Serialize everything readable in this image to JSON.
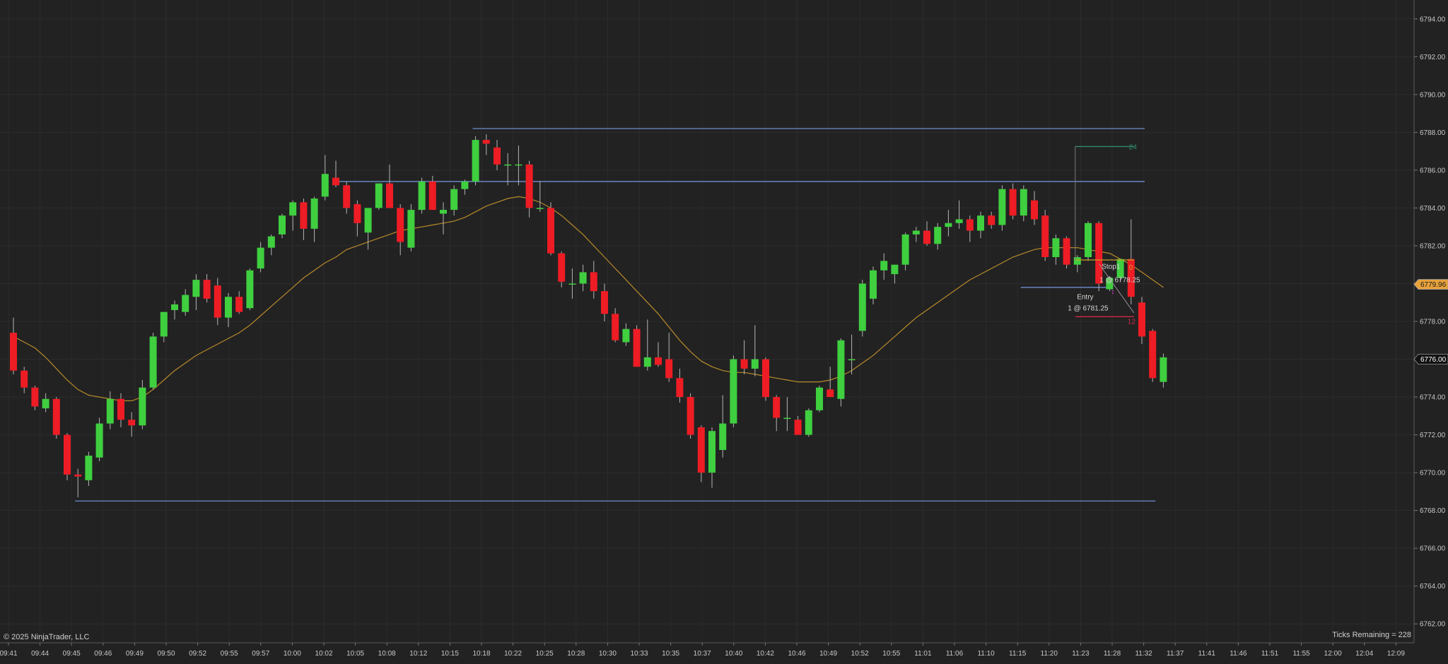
{
  "footer": {
    "copyright": "© 2025 NinjaTrader, LLC",
    "ticks_label": "Ticks Remaining =",
    "ticks_value": "228"
  },
  "colors": {
    "background": "#222222",
    "grid": "#2c2c2c",
    "up": "#3fcf3f",
    "down": "#ee1c24",
    "wick": "#b5b5b5",
    "ma": "#b88a2a",
    "zone_line": "#6e8fd0",
    "axis_text": "#c8c8c8",
    "target": "#2e8b6a",
    "stop": "#d02848",
    "entry_line": "#c8a028",
    "last_price_bg": "#e8a23a"
  },
  "chart_data": {
    "type": "candlestick",
    "title": "",
    "xlabel": "",
    "ylabel": "",
    "ylim": [
      6761.0,
      6795.0
    ],
    "y_ticks": [
      "6762.00",
      "6764.00",
      "6766.00",
      "6768.00",
      "6770.00",
      "6772.00",
      "6774.00",
      "6776.00",
      "6778.00",
      "6780.00",
      "6782.00",
      "6784.00",
      "6786.00",
      "6788.00",
      "6790.00",
      "6792.00",
      "6794.00"
    ],
    "x_ticks": [
      "09:41",
      "09:44",
      "09:45",
      "09:46",
      "09:49",
      "09:50",
      "09:52",
      "09:55",
      "09:57",
      "10:00",
      "10:02",
      "10:05",
      "10:08",
      "10:12",
      "10:15",
      "10:18",
      "10:22",
      "10:25",
      "10:28",
      "10:30",
      "10:33",
      "10:35",
      "10:37",
      "10:40",
      "10:42",
      "10:46",
      "10:49",
      "10:52",
      "10:55",
      "11:01",
      "11:06",
      "11:10",
      "11:15",
      "11:20",
      "11:23",
      "11:28",
      "11:32",
      "11:37",
      "11:41",
      "11:46",
      "11:51",
      "11:55",
      "12:00",
      "12:04",
      "12:09"
    ],
    "candles": [
      {
        "o": 6777.4,
        "h": 6778.2,
        "l": 6775.2,
        "c": 6775.4
      },
      {
        "o": 6775.4,
        "h": 6775.6,
        "l": 6774.2,
        "c": 6774.5
      },
      {
        "o": 6774.5,
        "h": 6774.6,
        "l": 6773.3,
        "c": 6773.5
      },
      {
        "o": 6773.4,
        "h": 6774.2,
        "l": 6773.2,
        "c": 6773.9
      },
      {
        "o": 6773.9,
        "h": 6774.0,
        "l": 6771.8,
        "c": 6772.0
      },
      {
        "o": 6772.0,
        "h": 6772.1,
        "l": 6769.6,
        "c": 6769.9
      },
      {
        "o": 6769.9,
        "h": 6770.2,
        "l": 6768.7,
        "c": 6769.8
      },
      {
        "o": 6769.6,
        "h": 6771.1,
        "l": 6769.3,
        "c": 6770.9
      },
      {
        "o": 6770.8,
        "h": 6772.9,
        "l": 6770.6,
        "c": 6772.6
      },
      {
        "o": 6772.6,
        "h": 6774.3,
        "l": 6772.3,
        "c": 6773.9
      },
      {
        "o": 6773.9,
        "h": 6774.2,
        "l": 6772.4,
        "c": 6772.8
      },
      {
        "o": 6772.8,
        "h": 6773.2,
        "l": 6771.9,
        "c": 6772.5
      },
      {
        "o": 6772.5,
        "h": 6774.9,
        "l": 6772.3,
        "c": 6774.5
      },
      {
        "o": 6774.5,
        "h": 6777.4,
        "l": 6774.4,
        "c": 6777.2
      },
      {
        "o": 6777.2,
        "h": 6778.5,
        "l": 6776.9,
        "c": 6778.5
      },
      {
        "o": 6778.6,
        "h": 6779.1,
        "l": 6778.1,
        "c": 6778.9
      },
      {
        "o": 6778.5,
        "h": 6779.7,
        "l": 6778.3,
        "c": 6779.4
      },
      {
        "o": 6779.3,
        "h": 6780.5,
        "l": 6778.6,
        "c": 6780.2
      },
      {
        "o": 6780.2,
        "h": 6780.5,
        "l": 6779.0,
        "c": 6779.2
      },
      {
        "o": 6779.9,
        "h": 6780.3,
        "l": 6777.8,
        "c": 6778.2
      },
      {
        "o": 6778.2,
        "h": 6779.5,
        "l": 6777.7,
        "c": 6779.3
      },
      {
        "o": 6779.3,
        "h": 6779.6,
        "l": 6778.4,
        "c": 6778.5
      },
      {
        "o": 6778.7,
        "h": 6780.8,
        "l": 6778.6,
        "c": 6780.7
      },
      {
        "o": 6780.8,
        "h": 6782.2,
        "l": 6780.6,
        "c": 6781.9
      },
      {
        "o": 6781.9,
        "h": 6782.6,
        "l": 6781.5,
        "c": 6782.5
      },
      {
        "o": 6782.6,
        "h": 6783.7,
        "l": 6782.4,
        "c": 6783.6
      },
      {
        "o": 6783.6,
        "h": 6784.4,
        "l": 6782.8,
        "c": 6784.3
      },
      {
        "o": 6784.3,
        "h": 6784.5,
        "l": 6782.3,
        "c": 6782.9
      },
      {
        "o": 6782.9,
        "h": 6784.6,
        "l": 6782.2,
        "c": 6784.5
      },
      {
        "o": 6784.6,
        "h": 6786.8,
        "l": 6784.4,
        "c": 6785.8
      },
      {
        "o": 6785.6,
        "h": 6786.5,
        "l": 6785.1,
        "c": 6785.2
      },
      {
        "o": 6785.2,
        "h": 6785.4,
        "l": 6783.7,
        "c": 6784.0
      },
      {
        "o": 6784.2,
        "h": 6784.4,
        "l": 6782.5,
        "c": 6783.2
      },
      {
        "o": 6782.7,
        "h": 6784.0,
        "l": 6781.8,
        "c": 6784.0
      },
      {
        "o": 6784.0,
        "h": 6785.3,
        "l": 6783.9,
        "c": 6785.3
      },
      {
        "o": 6785.3,
        "h": 6786.3,
        "l": 6784.0,
        "c": 6784.0
      },
      {
        "o": 6784.0,
        "h": 6784.2,
        "l": 6781.5,
        "c": 6782.2
      },
      {
        "o": 6781.9,
        "h": 6784.2,
        "l": 6781.7,
        "c": 6783.9
      },
      {
        "o": 6783.9,
        "h": 6785.6,
        "l": 6783.7,
        "c": 6785.4
      },
      {
        "o": 6785.4,
        "h": 6785.7,
        "l": 6783.9,
        "c": 6783.9
      },
      {
        "o": 6783.7,
        "h": 6784.3,
        "l": 6782.6,
        "c": 6783.9
      },
      {
        "o": 6783.9,
        "h": 6785.2,
        "l": 6783.6,
        "c": 6785.0
      },
      {
        "o": 6785.0,
        "h": 6785.5,
        "l": 6784.7,
        "c": 6785.4
      },
      {
        "o": 6785.4,
        "h": 6787.8,
        "l": 6785.2,
        "c": 6787.6
      },
      {
        "o": 6787.6,
        "h": 6787.9,
        "l": 6786.8,
        "c": 6787.4
      },
      {
        "o": 6787.2,
        "h": 6787.6,
        "l": 6786.0,
        "c": 6786.3
      },
      {
        "o": 6786.3,
        "h": 6786.9,
        "l": 6785.2,
        "c": 6786.3
      },
      {
        "o": 6786.3,
        "h": 6787.3,
        "l": 6785.2,
        "c": 6786.3
      },
      {
        "o": 6786.3,
        "h": 6786.5,
        "l": 6783.5,
        "c": 6784.0
      },
      {
        "o": 6784.0,
        "h": 6785.4,
        "l": 6783.8,
        "c": 6784.0
      },
      {
        "o": 6784.0,
        "h": 6784.3,
        "l": 6781.5,
        "c": 6781.6
      },
      {
        "o": 6781.6,
        "h": 6781.7,
        "l": 6779.8,
        "c": 6780.1
      },
      {
        "o": 6780.0,
        "h": 6780.8,
        "l": 6779.2,
        "c": 6780.0
      },
      {
        "o": 6780.0,
        "h": 6781.0,
        "l": 6779.6,
        "c": 6780.6
      },
      {
        "o": 6780.6,
        "h": 6781.2,
        "l": 6779.2,
        "c": 6779.6
      },
      {
        "o": 6779.6,
        "h": 6780.0,
        "l": 6778.0,
        "c": 6778.4
      },
      {
        "o": 6778.4,
        "h": 6778.7,
        "l": 6776.9,
        "c": 6777.0
      },
      {
        "o": 6776.9,
        "h": 6777.9,
        "l": 6776.7,
        "c": 6777.6
      },
      {
        "o": 6777.6,
        "h": 6777.8,
        "l": 6775.6,
        "c": 6775.6
      },
      {
        "o": 6775.6,
        "h": 6778.1,
        "l": 6775.4,
        "c": 6776.1
      },
      {
        "o": 6776.1,
        "h": 6776.9,
        "l": 6775.6,
        "c": 6775.7
      },
      {
        "o": 6776.0,
        "h": 6777.4,
        "l": 6774.8,
        "c": 6775.0
      },
      {
        "o": 6775.0,
        "h": 6775.5,
        "l": 6773.7,
        "c": 6774.0
      },
      {
        "o": 6774.0,
        "h": 6774.2,
        "l": 6771.8,
        "c": 6772.0
      },
      {
        "o": 6772.4,
        "h": 6772.5,
        "l": 6769.5,
        "c": 6770.0
      },
      {
        "o": 6770.0,
        "h": 6772.4,
        "l": 6769.2,
        "c": 6772.2
      },
      {
        "o": 6771.2,
        "h": 6774.1,
        "l": 6770.8,
        "c": 6772.6
      },
      {
        "o": 6772.6,
        "h": 6776.2,
        "l": 6772.4,
        "c": 6776.0
      },
      {
        "o": 6776.0,
        "h": 6777.0,
        "l": 6775.2,
        "c": 6775.5
      },
      {
        "o": 6775.5,
        "h": 6777.8,
        "l": 6775.1,
        "c": 6776.0
      },
      {
        "o": 6776.0,
        "h": 6776.1,
        "l": 6773.8,
        "c": 6774.0
      },
      {
        "o": 6774.0,
        "h": 6774.1,
        "l": 6772.2,
        "c": 6772.9
      },
      {
        "o": 6772.9,
        "h": 6774.0,
        "l": 6772.2,
        "c": 6772.9
      },
      {
        "o": 6772.8,
        "h": 6773.0,
        "l": 6772.0,
        "c": 6772.0
      },
      {
        "o": 6772.0,
        "h": 6773.4,
        "l": 6771.9,
        "c": 6773.3
      },
      {
        "o": 6773.3,
        "h": 6774.6,
        "l": 6773.2,
        "c": 6774.5
      },
      {
        "o": 6774.4,
        "h": 6775.6,
        "l": 6774.2,
        "c": 6774.0
      },
      {
        "o": 6773.9,
        "h": 6777.1,
        "l": 6773.5,
        "c": 6777.0
      },
      {
        "o": 6776.0,
        "h": 6777.3,
        "l": 6775.2,
        "c": 6776.0
      },
      {
        "o": 6777.5,
        "h": 6780.2,
        "l": 6777.2,
        "c": 6780.0
      },
      {
        "o": 6779.2,
        "h": 6780.9,
        "l": 6778.9,
        "c": 6780.7
      },
      {
        "o": 6780.7,
        "h": 6781.6,
        "l": 6780.2,
        "c": 6781.2
      },
      {
        "o": 6780.5,
        "h": 6781.0,
        "l": 6780.0,
        "c": 6781.0
      },
      {
        "o": 6781.0,
        "h": 6782.7,
        "l": 6780.7,
        "c": 6782.6
      },
      {
        "o": 6782.6,
        "h": 6783.0,
        "l": 6782.2,
        "c": 6782.8
      },
      {
        "o": 6782.8,
        "h": 6783.3,
        "l": 6782.0,
        "c": 6782.1
      },
      {
        "o": 6782.1,
        "h": 6783.2,
        "l": 6781.8,
        "c": 6783.0
      },
      {
        "o": 6783.0,
        "h": 6783.9,
        "l": 6782.5,
        "c": 6783.2
      },
      {
        "o": 6783.2,
        "h": 6784.4,
        "l": 6782.9,
        "c": 6783.4
      },
      {
        "o": 6783.4,
        "h": 6783.6,
        "l": 6782.2,
        "c": 6782.8
      },
      {
        "o": 6782.8,
        "h": 6783.8,
        "l": 6782.4,
        "c": 6783.6
      },
      {
        "o": 6783.6,
        "h": 6783.8,
        "l": 6782.9,
        "c": 6783.1
      },
      {
        "o": 6783.1,
        "h": 6785.2,
        "l": 6782.8,
        "c": 6785.0
      },
      {
        "o": 6785.0,
        "h": 6785.3,
        "l": 6783.4,
        "c": 6783.6
      },
      {
        "o": 6783.6,
        "h": 6785.2,
        "l": 6783.3,
        "c": 6785.0
      },
      {
        "o": 6784.4,
        "h": 6784.9,
        "l": 6783.1,
        "c": 6783.4
      },
      {
        "o": 6783.6,
        "h": 6783.9,
        "l": 6781.2,
        "c": 6781.4
      },
      {
        "o": 6781.4,
        "h": 6782.6,
        "l": 6781.0,
        "c": 6782.4
      },
      {
        "o": 6782.4,
        "h": 6782.5,
        "l": 6780.8,
        "c": 6781.0
      },
      {
        "o": 6781.0,
        "h": 6781.5,
        "l": 6780.6,
        "c": 6781.4
      },
      {
        "o": 6781.4,
        "h": 6783.3,
        "l": 6781.2,
        "c": 6783.2
      },
      {
        "o": 6783.2,
        "h": 6783.3,
        "l": 6779.6,
        "c": 6780.0
      },
      {
        "o": 6779.7,
        "h": 6780.4,
        "l": 6779.6,
        "c": 6780.3
      },
      {
        "o": 6780.3,
        "h": 6781.3,
        "l": 6780.1,
        "c": 6781.3
      },
      {
        "o": 6781.3,
        "h": 6783.4,
        "l": 6778.9,
        "c": 6779.3
      },
      {
        "o": 6779.0,
        "h": 6779.3,
        "l": 6776.8,
        "c": 6777.2
      },
      {
        "o": 6777.5,
        "h": 6777.6,
        "l": 6774.8,
        "c": 6775.0
      },
      {
        "o": 6774.8,
        "h": 6776.3,
        "l": 6774.5,
        "c": 6776.1
      }
    ],
    "ma": [
      6777.2,
      6776.9,
      6776.6,
      6776.1,
      6775.5,
      6774.9,
      6774.4,
      6774.1,
      6774.0,
      6773.9,
      6773.8,
      6773.8,
      6774.0,
      6774.4,
      6774.9,
      6775.4,
      6775.8,
      6776.2,
      6776.5,
      6776.8,
      6777.1,
      6777.4,
      6777.8,
      6778.3,
      6778.8,
      6779.3,
      6779.8,
      6780.3,
      6780.7,
      6781.1,
      6781.4,
      6781.8,
      6782.0,
      6782.2,
      6782.4,
      6782.6,
      6782.8,
      6782.9,
      6783.0,
      6783.1,
      6783.2,
      6783.3,
      6783.5,
      6783.8,
      6784.1,
      6784.3,
      6784.5,
      6784.6,
      6784.5,
      6784.3,
      6784.0,
      6783.6,
      6783.1,
      6782.6,
      6782.0,
      6781.4,
      6780.8,
      6780.2,
      6779.6,
      6779.0,
      6778.4,
      6777.7,
      6777.0,
      6776.4,
      6775.9,
      6775.6,
      6775.4,
      6775.3,
      6775.3,
      6775.2,
      6775.1,
      6775.0,
      6774.9,
      6774.8,
      6774.8,
      6774.8,
      6774.9,
      6775.1,
      6775.4,
      6775.8,
      6776.2,
      6776.7,
      6777.2,
      6777.7,
      6778.2,
      6778.6,
      6779.0,
      6779.4,
      6779.8,
      6780.2,
      6780.5,
      6780.8,
      6781.1,
      6781.4,
      6781.6,
      6781.8,
      6781.9,
      6781.9,
      6781.9,
      6781.9,
      6781.8,
      6781.7,
      6781.6,
      6781.3,
      6781.0,
      6780.6,
      6780.2,
      6779.8
    ],
    "zones": [
      {
        "price": 6788.2,
        "from_bar": 43,
        "to_bar": 105
      },
      {
        "price": 6785.4,
        "from_bar": 30,
        "to_bar": 105
      },
      {
        "price": 6768.5,
        "from_bar": 6,
        "to_bar": 106
      },
      {
        "price": 6779.8,
        "from_bar": 94,
        "to_bar": 102
      }
    ],
    "order": {
      "entry_price": 6781.25,
      "stop_price": 6778.25,
      "target_price": 6787.25,
      "from_bar": 99,
      "to_bar": 104,
      "target_label": "24",
      "entry_label": "0",
      "stop_label": "12",
      "stop_tag": "Stop1",
      "stop_fill": "1 @ 6778.25",
      "entry_tag": "Entry",
      "entry_fill": "1 @ 6781.25"
    },
    "last_price": "6779.96",
    "last_price_value": 6779.96,
    "current_price": "6776.00",
    "current_price_value": 6776.0
  }
}
